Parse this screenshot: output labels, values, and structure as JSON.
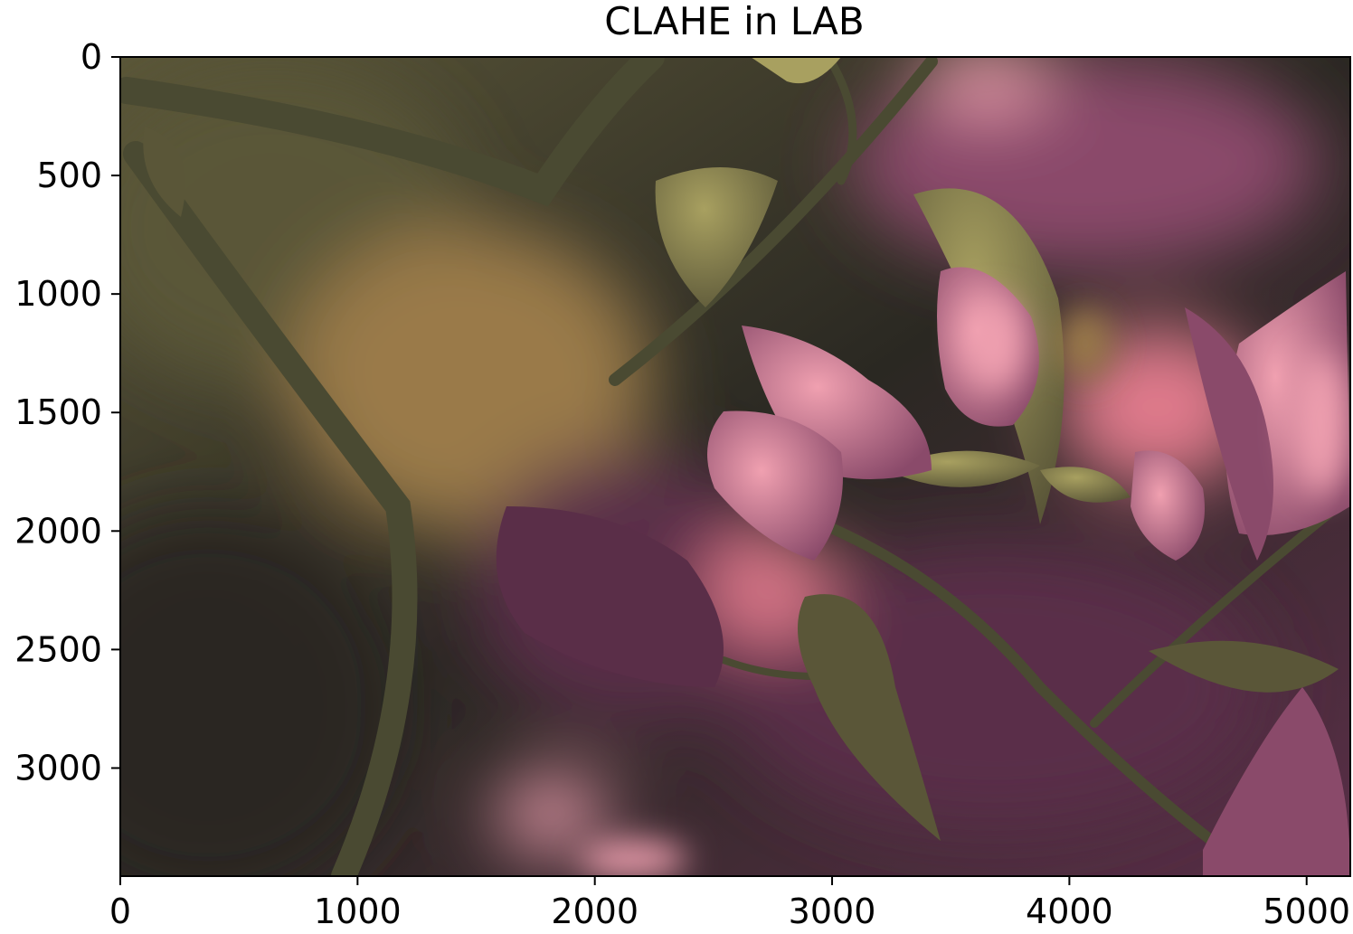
{
  "chart_data": {
    "type": "image",
    "title": "CLAHE in LAB",
    "xlabel": "",
    "ylabel": "",
    "image_width": 5184,
    "image_height": 3456,
    "xlim": [
      0,
      5184
    ],
    "ylim": [
      3456,
      0
    ],
    "xticks": [
      0,
      1000,
      2000,
      3000,
      4000,
      5000
    ],
    "xtick_labels": [
      "0",
      "1000",
      "2000",
      "3000",
      "4000",
      "5000"
    ],
    "yticks": [
      0,
      500,
      1000,
      1500,
      2000,
      2500,
      3000
    ],
    "ytick_labels": [
      "0",
      "500",
      "1000",
      "1500",
      "2000",
      "2500",
      "3000"
    ],
    "grid": false,
    "image_subject": "photo",
    "palette": {
      "dark_bg": "#2a2822",
      "olive": "#5a5638",
      "stem": "#4a4a32",
      "leaf_lit": "#a8a060",
      "pink": "#e07a8c",
      "pink_light": "#f0a0b0",
      "mauve": "#8a4a6a",
      "purple_dark": "#5a2e48",
      "gold_haze": "#9a7a4a"
    }
  }
}
